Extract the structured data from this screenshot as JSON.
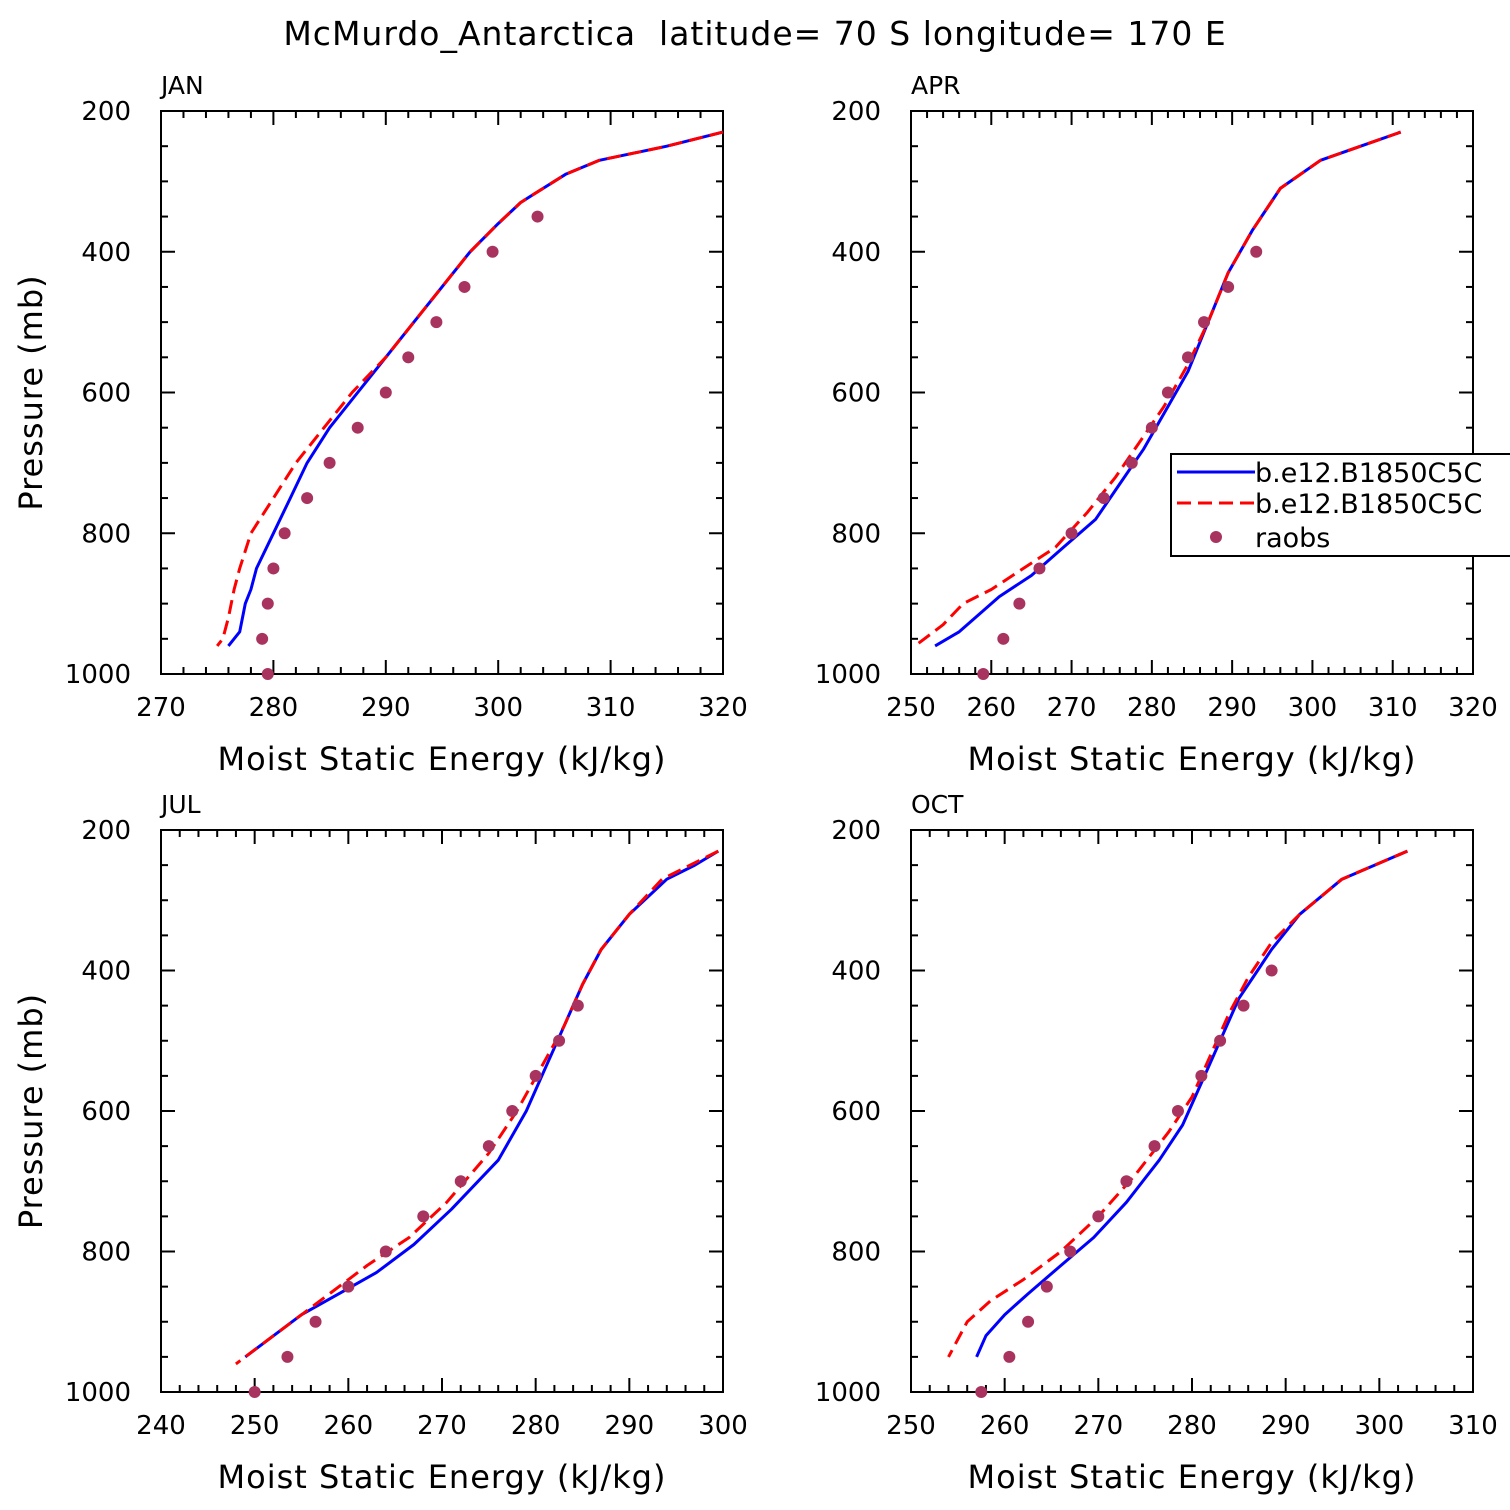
{
  "title": "McMurdo_Antarctica  latitude= 70 S longitude= 170 E",
  "colors": {
    "series1": "#0000ff",
    "series2": "#ff0000",
    "obs": "#a8335f"
  },
  "legend": {
    "placement": "right-middle of APR panel",
    "entries": [
      "b.e12.B1850C5C",
      "b.e12.B1850C5C",
      "raobs"
    ]
  },
  "chart_data": [
    {
      "type": "line",
      "panel": "JAN",
      "xlabel": "Moist Static Energy (kJ/kg)",
      "ylabel": "Pressure (mb)",
      "xlim": [
        270,
        320
      ],
      "ylim": [
        200,
        1000
      ],
      "y_reversed": true,
      "xticks": [
        270,
        280,
        290,
        300,
        310,
        320
      ],
      "yticks": [
        200,
        400,
        600,
        800,
        1000
      ],
      "series": [
        {
          "name": "b.e12.B1850C5C",
          "style": "solid",
          "points": [
            [
              320,
              230
            ],
            [
              315,
              250
            ],
            [
              309,
              270
            ],
            [
              306,
              290
            ],
            [
              303,
              320
            ],
            [
              302,
              330
            ],
            [
              300,
              360
            ],
            [
              297.5,
              400
            ],
            [
              295,
              450
            ],
            [
              292.5,
              500
            ],
            [
              290,
              550
            ],
            [
              287.5,
              600
            ],
            [
              285,
              650
            ],
            [
              283,
              700
            ],
            [
              281.5,
              750
            ],
            [
              280,
              800
            ],
            [
              278.5,
              850
            ],
            [
              278,
              880
            ],
            [
              277.5,
              900
            ],
            [
              277,
              940
            ],
            [
              276,
              960
            ]
          ]
        },
        {
          "name": "b.e12.B1850C5C",
          "style": "dashed",
          "points": [
            [
              320,
              230
            ],
            [
              315,
              250
            ],
            [
              309,
              270
            ],
            [
              306,
              290
            ],
            [
              303,
              320
            ],
            [
              302,
              330
            ],
            [
              300,
              360
            ],
            [
              297.5,
              400
            ],
            [
              295,
              450
            ],
            [
              292.5,
              500
            ],
            [
              290,
              550
            ],
            [
              287,
              600
            ],
            [
              284.5,
              650
            ],
            [
              282,
              700
            ],
            [
              280,
              750
            ],
            [
              278,
              800
            ],
            [
              277,
              850
            ],
            [
              276.5,
              880
            ],
            [
              276,
              920
            ],
            [
              275.5,
              950
            ],
            [
              275,
              960
            ]
          ]
        }
      ],
      "observations": [
        [
          303.5,
          350
        ],
        [
          299.5,
          400
        ],
        [
          297,
          450
        ],
        [
          294.5,
          500
        ],
        [
          292,
          550
        ],
        [
          290,
          600
        ],
        [
          287.5,
          650
        ],
        [
          285,
          700
        ],
        [
          283,
          750
        ],
        [
          281,
          800
        ],
        [
          280,
          850
        ],
        [
          279.5,
          900
        ],
        [
          279,
          950
        ],
        [
          279.5,
          1000
        ]
      ]
    },
    {
      "type": "line",
      "panel": "APR",
      "xlabel": "Moist Static Energy (kJ/kg)",
      "ylabel": "",
      "xlim": [
        250,
        320
      ],
      "ylim": [
        200,
        1000
      ],
      "y_reversed": true,
      "xticks": [
        250,
        260,
        270,
        280,
        290,
        300,
        310,
        320
      ],
      "yticks": [
        200,
        400,
        600,
        800,
        1000
      ],
      "series": [
        {
          "name": "b.e12.B1850C5C",
          "style": "solid",
          "points": [
            [
              311,
              230
            ],
            [
              306,
              250
            ],
            [
              301,
              270
            ],
            [
              296,
              310
            ],
            [
              292.5,
              370
            ],
            [
              289.5,
              430
            ],
            [
              287,
              500
            ],
            [
              284.5,
              570
            ],
            [
              282,
              620
            ],
            [
              279,
              680
            ],
            [
              276,
              730
            ],
            [
              273,
              780
            ],
            [
              269,
              820
            ],
            [
              265,
              860
            ],
            [
              261,
              890
            ],
            [
              258,
              920
            ],
            [
              256,
              940
            ],
            [
              253,
              960
            ]
          ]
        },
        {
          "name": "b.e12.B1850C5C",
          "style": "dashed",
          "points": [
            [
              311,
              230
            ],
            [
              306,
              250
            ],
            [
              301,
              270
            ],
            [
              296,
              310
            ],
            [
              292.5,
              370
            ],
            [
              289.5,
              430
            ],
            [
              287,
              500
            ],
            [
              284.5,
              560
            ],
            [
              281.5,
              620
            ],
            [
              278.5,
              670
            ],
            [
              275.5,
              720
            ],
            [
              272,
              770
            ],
            [
              268,
              820
            ],
            [
              264,
              850
            ],
            [
              260,
              880
            ],
            [
              256.5,
              900
            ],
            [
              254,
              930
            ],
            [
              250.5,
              960
            ]
          ]
        }
      ],
      "observations": [
        [
          293,
          400
        ],
        [
          289.5,
          450
        ],
        [
          286.5,
          500
        ],
        [
          284.5,
          550
        ],
        [
          282,
          600
        ],
        [
          280,
          650
        ],
        [
          277.5,
          700
        ],
        [
          274,
          750
        ],
        [
          270,
          800
        ],
        [
          266,
          850
        ],
        [
          263.5,
          900
        ],
        [
          261.5,
          950
        ],
        [
          259,
          1000
        ]
      ]
    },
    {
      "type": "line",
      "panel": "JUL",
      "xlabel": "Moist Static Energy (kJ/kg)",
      "ylabel": "Pressure (mb)",
      "xlim": [
        240,
        300
      ],
      "ylim": [
        200,
        1000
      ],
      "y_reversed": true,
      "xticks": [
        240,
        250,
        260,
        270,
        280,
        290,
        300
      ],
      "yticks": [
        200,
        400,
        600,
        800,
        1000
      ],
      "series": [
        {
          "name": "b.e12.B1850C5C",
          "style": "solid",
          "points": [
            [
              299.5,
              230
            ],
            [
              297,
              250
            ],
            [
              294,
              270
            ],
            [
              290,
              320
            ],
            [
              287,
              370
            ],
            [
              285,
              420
            ],
            [
              283,
              480
            ],
            [
              281,
              540
            ],
            [
              279,
              600
            ],
            [
              276,
              670
            ],
            [
              271,
              740
            ],
            [
              267,
              790
            ],
            [
              263,
              830
            ],
            [
              259,
              860
            ],
            [
              255,
              890
            ],
            [
              252,
              920
            ],
            [
              249,
              950
            ]
          ]
        },
        {
          "name": "b.e12.B1850C5C",
          "style": "dashed",
          "points": [
            [
              299.5,
              230
            ],
            [
              296.5,
              250
            ],
            [
              293.5,
              270
            ],
            [
              290,
              320
            ],
            [
              287,
              370
            ],
            [
              285,
              420
            ],
            [
              283,
              480
            ],
            [
              280.5,
              540
            ],
            [
              278,
              600
            ],
            [
              275,
              660
            ],
            [
              270.5,
              730
            ],
            [
              266.5,
              780
            ],
            [
              262,
              820
            ],
            [
              258,
              860
            ],
            [
              254,
              900
            ],
            [
              251,
              930
            ],
            [
              248,
              960
            ]
          ]
        }
      ],
      "observations": [
        [
          284.5,
          450
        ],
        [
          282.5,
          500
        ],
        [
          280,
          550
        ],
        [
          277.5,
          600
        ],
        [
          275,
          650
        ],
        [
          272,
          700
        ],
        [
          268,
          750
        ],
        [
          264,
          800
        ],
        [
          260,
          850
        ],
        [
          256.5,
          900
        ],
        [
          253.5,
          950
        ],
        [
          250,
          1000
        ]
      ]
    },
    {
      "type": "line",
      "panel": "OCT",
      "xlabel": "Moist Static Energy (kJ/kg)",
      "ylabel": "",
      "xlim": [
        250,
        310
      ],
      "ylim": [
        200,
        1000
      ],
      "y_reversed": true,
      "xticks": [
        250,
        260,
        270,
        280,
        290,
        300,
        310
      ],
      "yticks": [
        200,
        400,
        600,
        800,
        1000
      ],
      "series": [
        {
          "name": "b.e12.B1850C5C",
          "style": "solid",
          "points": [
            [
              303,
              230
            ],
            [
              296,
              270
            ],
            [
              291.5,
              320
            ],
            [
              288.5,
              370
            ],
            [
              287,
              400
            ],
            [
              285,
              440
            ],
            [
              283,
              500
            ],
            [
              281,
              560
            ],
            [
              279,
              620
            ],
            [
              276.5,
              670
            ],
            [
              273,
              730
            ],
            [
              269.5,
              780
            ],
            [
              266,
              820
            ],
            [
              262.5,
              860
            ],
            [
              260,
              890
            ],
            [
              258,
              920
            ],
            [
              257,
              950
            ]
          ]
        },
        {
          "name": "b.e12.B1850C5C",
          "style": "dashed",
          "points": [
            [
              303,
              230
            ],
            [
              296,
              270
            ],
            [
              291.5,
              320
            ],
            [
              288.5,
              360
            ],
            [
              286,
              410
            ],
            [
              284,
              460
            ],
            [
              282,
              520
            ],
            [
              280,
              580
            ],
            [
              277.5,
              630
            ],
            [
              274,
              690
            ],
            [
              270,
              750
            ],
            [
              266,
              800
            ],
            [
              262,
              840
            ],
            [
              258.5,
              870
            ],
            [
              256,
              900
            ],
            [
              254,
              950
            ]
          ]
        }
      ],
      "observations": [
        [
          288.5,
          400
        ],
        [
          285.5,
          450
        ],
        [
          283,
          500
        ],
        [
          281,
          550
        ],
        [
          278.5,
          600
        ],
        [
          276,
          650
        ],
        [
          273,
          700
        ],
        [
          270,
          750
        ],
        [
          267,
          800
        ],
        [
          264.5,
          850
        ],
        [
          262.5,
          900
        ],
        [
          260.5,
          950
        ],
        [
          257.5,
          1000
        ]
      ]
    }
  ]
}
